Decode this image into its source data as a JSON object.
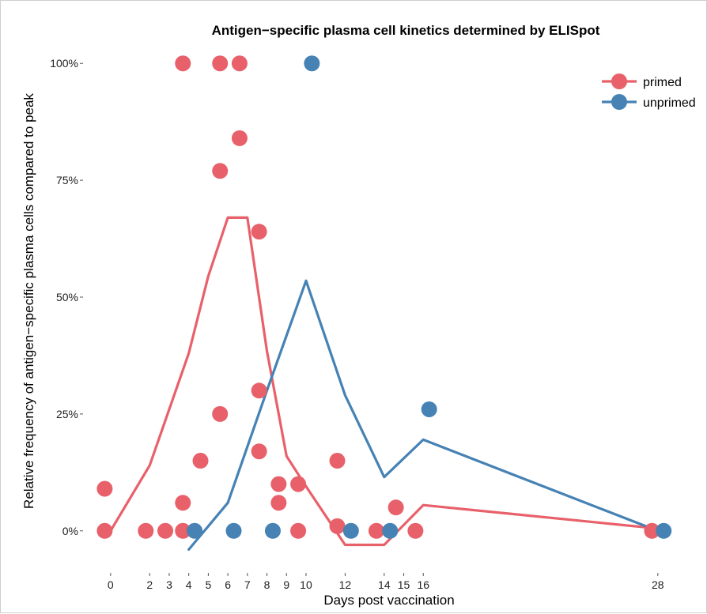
{
  "chart_data": {
    "type": "scatter",
    "title": "Antigen−specific plasma cell kinetics determined by ELISpot",
    "xlabel": "Days post vaccination",
    "ylabel": "Relative frequency of antigen−specific plasma cells compared to peak",
    "x_ticks": [
      0,
      2,
      3,
      4,
      5,
      6,
      7,
      8,
      9,
      10,
      12,
      14,
      15,
      16,
      28
    ],
    "y_ticks": [
      {
        "value": 0,
        "label": "0%"
      },
      {
        "value": 25,
        "label": "25%"
      },
      {
        "value": 50,
        "label": "50%"
      },
      {
        "value": 75,
        "label": "75%"
      },
      {
        "value": 100,
        "label": "100%"
      }
    ],
    "xlim": [
      -0.6,
      29.1
    ],
    "ylim": [
      -9,
      109
    ],
    "grid": false,
    "legend_position": "top-right",
    "series": [
      {
        "name": "primed",
        "color": "#e8606a",
        "points": [
          [
            -0.3,
            9
          ],
          [
            -0.3,
            0
          ],
          [
            1.8,
            0
          ],
          [
            2.8,
            0
          ],
          [
            3.7,
            0
          ],
          [
            3.7,
            6
          ],
          [
            3.7,
            100
          ],
          [
            4.6,
            15
          ],
          [
            5.6,
            25
          ],
          [
            5.6,
            77
          ],
          [
            5.6,
            100
          ],
          [
            6.6,
            100
          ],
          [
            6.6,
            84
          ],
          [
            7.6,
            64
          ],
          [
            7.6,
            30
          ],
          [
            7.6,
            17
          ],
          [
            8.6,
            10
          ],
          [
            8.6,
            6
          ],
          [
            9.6,
            10
          ],
          [
            9.6,
            0
          ],
          [
            11.6,
            15
          ],
          [
            11.6,
            1
          ],
          [
            13.6,
            0
          ],
          [
            14.6,
            5
          ],
          [
            15.6,
            0
          ],
          [
            27.7,
            0
          ]
        ],
        "trend": [
          [
            0,
            0
          ],
          [
            2,
            14
          ],
          [
            4,
            38
          ],
          [
            5,
            54.5
          ],
          [
            6,
            67
          ],
          [
            7,
            67
          ],
          [
            8,
            38.5
          ],
          [
            9,
            16
          ],
          [
            10,
            9.5
          ],
          [
            12,
            -3
          ],
          [
            14,
            -3
          ],
          [
            16,
            5.5
          ],
          [
            28,
            0.5
          ]
        ]
      },
      {
        "name": "unprimed",
        "color": "#4682b4",
        "points": [
          [
            4.3,
            0
          ],
          [
            6.3,
            0
          ],
          [
            8.3,
            0
          ],
          [
            10.3,
            100
          ],
          [
            12.3,
            0
          ],
          [
            14.3,
            0
          ],
          [
            16.3,
            26
          ],
          [
            28.3,
            0
          ]
        ],
        "trend": [
          [
            4,
            -4
          ],
          [
            6,
            6
          ],
          [
            8,
            30
          ],
          [
            10,
            53.5
          ],
          [
            12,
            29
          ],
          [
            14,
            11.5
          ],
          [
            16,
            19.5
          ],
          [
            28,
            0
          ]
        ]
      }
    ]
  }
}
